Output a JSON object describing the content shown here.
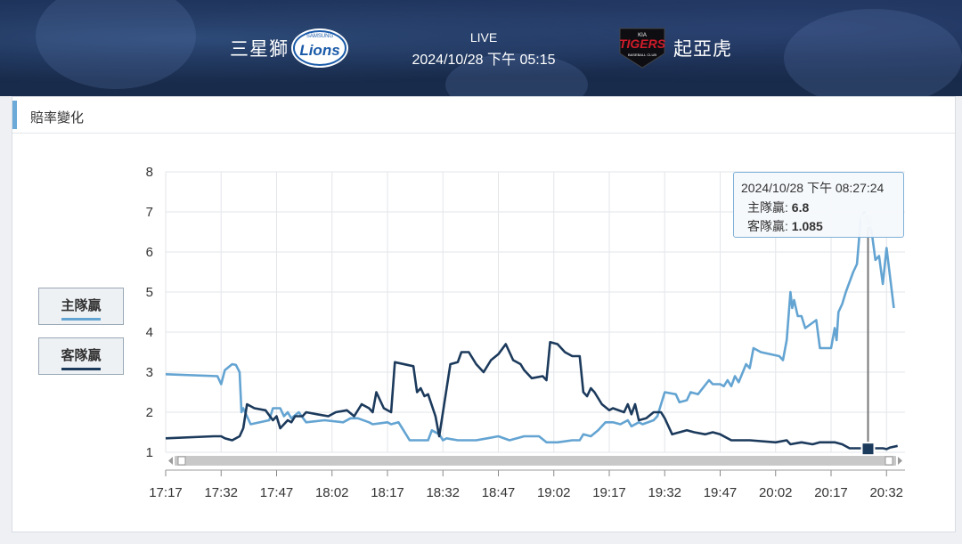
{
  "header": {
    "home_team": "三星獅",
    "away_team": "起亞虎",
    "status": "LIVE",
    "datetime": "2024/10/28 下午 05:15",
    "home_logo_text": "Lions",
    "home_logo_sub": "SAMSUNG",
    "away_logo_text": "TIGERS",
    "away_logo_top": "KIA",
    "away_logo_sub": "BASEBALL CLUB"
  },
  "section": {
    "title": "賠率變化"
  },
  "legend": {
    "home_label": "主隊贏",
    "away_label": "客隊贏"
  },
  "colors": {
    "home": "#64a4d2",
    "away": "#1c3a5c",
    "accent": "#6aa9d8"
  },
  "tooltip": {
    "time": "2024/10/28 下午 08:27:24",
    "home_label": "主隊贏:",
    "home_value": "6.8",
    "away_label": "客隊贏:",
    "away_value": "1.085"
  },
  "chart_data": {
    "type": "line",
    "xlabel": "",
    "ylabel": "",
    "ylim": [
      1,
      8
    ],
    "yticks": [
      1,
      2,
      3,
      4,
      5,
      6,
      7,
      8
    ],
    "xlim_minutes": [
      "17:17",
      "20:37"
    ],
    "xticks": [
      "17:17",
      "17:32",
      "17:47",
      "18:02",
      "18:17",
      "18:32",
      "18:47",
      "19:02",
      "19:17",
      "19:32",
      "19:47",
      "20:02",
      "20:17",
      "20:32"
    ],
    "grid": true,
    "series": [
      {
        "name": "主隊贏",
        "points": [
          [
            "17:17",
            2.95
          ],
          [
            "17:31",
            2.9
          ],
          [
            "17:32",
            2.7
          ],
          [
            "17:33",
            3.05
          ],
          [
            "17:35",
            3.2
          ],
          [
            "17:36",
            3.18
          ],
          [
            "17:37",
            3.0
          ],
          [
            "17:37.5",
            2.0
          ],
          [
            "17:38",
            2.1
          ],
          [
            "17:40",
            1.7
          ],
          [
            "17:45",
            1.8
          ],
          [
            "17:46",
            2.1
          ],
          [
            "17:48",
            2.1
          ],
          [
            "17:49",
            1.9
          ],
          [
            "17:50",
            2.0
          ],
          [
            "17:51",
            1.85
          ],
          [
            "17:53",
            2.0
          ],
          [
            "17:55",
            1.75
          ],
          [
            "18:00",
            1.8
          ],
          [
            "18:05",
            1.75
          ],
          [
            "18:07",
            1.85
          ],
          [
            "18:09",
            1.85
          ],
          [
            "18:12",
            1.75
          ],
          [
            "18:13",
            1.7
          ],
          [
            "18:17",
            1.75
          ],
          [
            "18:18",
            1.7
          ],
          [
            "18:20",
            1.75
          ],
          [
            "18:21",
            1.6
          ],
          [
            "18:23",
            1.3
          ],
          [
            "18:28",
            1.3
          ],
          [
            "18:29",
            1.55
          ],
          [
            "18:31",
            1.45
          ],
          [
            "18:32",
            1.3
          ],
          [
            "18:33",
            1.35
          ],
          [
            "18:36",
            1.3
          ],
          [
            "18:41",
            1.3
          ],
          [
            "18:44",
            1.35
          ],
          [
            "18:47",
            1.4
          ],
          [
            "18:50",
            1.3
          ],
          [
            "18:54",
            1.4
          ],
          [
            "18:58",
            1.4
          ],
          [
            "19:00",
            1.25
          ],
          [
            "19:03",
            1.25
          ],
          [
            "19:07",
            1.3
          ],
          [
            "19:09",
            1.3
          ],
          [
            "19:10",
            1.45
          ],
          [
            "19:12",
            1.4
          ],
          [
            "19:14",
            1.55
          ],
          [
            "19:16",
            1.75
          ],
          [
            "19:18",
            1.75
          ],
          [
            "19:20",
            1.7
          ],
          [
            "19:22",
            1.8
          ],
          [
            "19:23",
            1.65
          ],
          [
            "19:25",
            1.75
          ],
          [
            "19:26",
            1.7
          ],
          [
            "19:29",
            1.8
          ],
          [
            "19:30",
            1.9
          ],
          [
            "19:32",
            2.5
          ],
          [
            "19:35",
            2.45
          ],
          [
            "19:36",
            2.25
          ],
          [
            "19:38",
            2.3
          ],
          [
            "19:39",
            2.5
          ],
          [
            "19:41",
            2.45
          ],
          [
            "19:44",
            2.8
          ],
          [
            "19:45",
            2.7
          ],
          [
            "19:47",
            2.7
          ],
          [
            "19:48",
            2.65
          ],
          [
            "19:49",
            2.8
          ],
          [
            "19:50",
            2.65
          ],
          [
            "19:51",
            2.9
          ],
          [
            "19:52",
            2.75
          ],
          [
            "19:54",
            3.2
          ],
          [
            "19:55",
            3.1
          ],
          [
            "19:56",
            3.6
          ],
          [
            "19:58",
            3.5
          ],
          [
            "20:03",
            3.4
          ],
          [
            "20:04",
            3.3
          ],
          [
            "20:05",
            3.8
          ],
          [
            "20:06",
            5.0
          ],
          [
            "20:06.5",
            4.6
          ],
          [
            "20:07",
            4.8
          ],
          [
            "20:08",
            4.4
          ],
          [
            "20:09",
            4.4
          ],
          [
            "20:10",
            4.1
          ],
          [
            "20:13",
            4.3
          ],
          [
            "20:14",
            3.6
          ],
          [
            "20:17",
            3.6
          ],
          [
            "20:18",
            4.1
          ],
          [
            "20:18.5",
            3.8
          ],
          [
            "20:19",
            4.5
          ],
          [
            "20:20",
            4.7
          ],
          [
            "20:21",
            5.0
          ],
          [
            "20:23",
            5.5
          ],
          [
            "20:24",
            5.7
          ],
          [
            "20:25",
            6.8
          ],
          [
            "20:26",
            7.0
          ],
          [
            "20:27",
            6.8
          ],
          [
            "20:28",
            6.5
          ],
          [
            "20:29",
            5.8
          ],
          [
            "20:30",
            5.9
          ],
          [
            "20:31",
            5.2
          ],
          [
            "20:32",
            6.1
          ],
          [
            "20:34",
            4.6
          ]
        ]
      },
      {
        "name": "客隊贏",
        "points": [
          [
            "17:17",
            1.35
          ],
          [
            "17:30",
            1.4
          ],
          [
            "17:32",
            1.4
          ],
          [
            "17:33",
            1.35
          ],
          [
            "17:35",
            1.3
          ],
          [
            "17:37",
            1.4
          ],
          [
            "17:38",
            1.6
          ],
          [
            "17:39",
            2.2
          ],
          [
            "17:41",
            2.1
          ],
          [
            "17:44",
            2.05
          ],
          [
            "17:46",
            1.8
          ],
          [
            "17:47",
            1.9
          ],
          [
            "17:48",
            1.6
          ],
          [
            "17:50",
            1.8
          ],
          [
            "17:51",
            1.75
          ],
          [
            "17:52",
            1.9
          ],
          [
            "17:54",
            1.9
          ],
          [
            "17:55",
            2.0
          ],
          [
            "17:58",
            1.95
          ],
          [
            "18:01",
            1.9
          ],
          [
            "18:03",
            2.0
          ],
          [
            "18:06",
            2.05
          ],
          [
            "18:08",
            1.9
          ],
          [
            "18:10",
            2.2
          ],
          [
            "18:12",
            2.1
          ],
          [
            "18:13",
            2.0
          ],
          [
            "18:14",
            2.5
          ],
          [
            "18:15",
            2.3
          ],
          [
            "18:16",
            2.1
          ],
          [
            "18:18",
            2.0
          ],
          [
            "18:19",
            3.25
          ],
          [
            "18:24",
            3.15
          ],
          [
            "18:25",
            2.5
          ],
          [
            "18:26",
            2.6
          ],
          [
            "18:27",
            2.4
          ],
          [
            "18:28",
            2.45
          ],
          [
            "18:30",
            1.9
          ],
          [
            "18:31",
            1.4
          ],
          [
            "18:34",
            3.2
          ],
          [
            "18:36",
            3.25
          ],
          [
            "18:37",
            3.5
          ],
          [
            "18:39",
            3.5
          ],
          [
            "18:41",
            3.2
          ],
          [
            "18:43",
            3.0
          ],
          [
            "18:45",
            3.3
          ],
          [
            "18:47",
            3.45
          ],
          [
            "18:49",
            3.7
          ],
          [
            "18:51",
            3.3
          ],
          [
            "18:53",
            3.2
          ],
          [
            "18:54",
            3.05
          ],
          [
            "18:56",
            2.85
          ],
          [
            "18:59",
            2.9
          ],
          [
            "19:00",
            2.8
          ],
          [
            "19:01",
            3.75
          ],
          [
            "19:03",
            3.7
          ],
          [
            "19:05",
            3.5
          ],
          [
            "19:07",
            3.4
          ],
          [
            "19:09",
            3.4
          ],
          [
            "19:10",
            2.5
          ],
          [
            "19:11",
            2.4
          ],
          [
            "19:12",
            2.6
          ],
          [
            "19:13",
            2.5
          ],
          [
            "19:15",
            2.2
          ],
          [
            "19:17",
            2.05
          ],
          [
            "19:18",
            2.1
          ],
          [
            "19:21",
            2.0
          ],
          [
            "19:22",
            2.2
          ],
          [
            "19:23",
            1.95
          ],
          [
            "19:24",
            2.2
          ],
          [
            "19:25",
            1.8
          ],
          [
            "19:27",
            1.85
          ],
          [
            "19:29",
            2.0
          ],
          [
            "19:31",
            2.0
          ],
          [
            "19:32",
            1.85
          ],
          [
            "19:34",
            1.45
          ],
          [
            "19:36",
            1.5
          ],
          [
            "19:38",
            1.55
          ],
          [
            "19:40",
            1.5
          ],
          [
            "19:43",
            1.45
          ],
          [
            "19:45",
            1.5
          ],
          [
            "19:47",
            1.45
          ],
          [
            "19:50",
            1.3
          ],
          [
            "19:55",
            1.3
          ],
          [
            "20:02",
            1.25
          ],
          [
            "20:05",
            1.3
          ],
          [
            "20:06",
            1.2
          ],
          [
            "20:09",
            1.25
          ],
          [
            "20:12",
            1.2
          ],
          [
            "20:14",
            1.25
          ],
          [
            "20:18",
            1.25
          ],
          [
            "20:20",
            1.2
          ],
          [
            "20:22",
            1.1
          ],
          [
            "20:25",
            1.1
          ],
          [
            "20:27",
            1.085
          ],
          [
            "20:29",
            1.1
          ],
          [
            "20:31",
            1.1
          ],
          [
            "20:32",
            1.08
          ],
          [
            "20:33",
            1.12
          ],
          [
            "20:35",
            1.16
          ]
        ]
      }
    ]
  }
}
